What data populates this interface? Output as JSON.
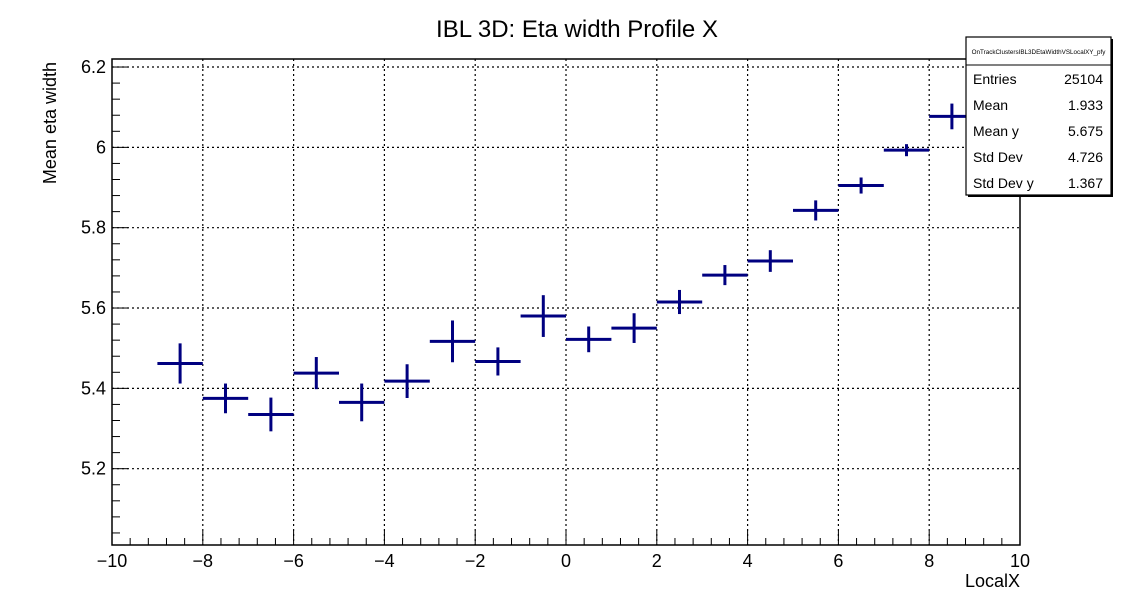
{
  "chart_data": {
    "type": "scatter",
    "title": "IBL 3D: Eta width Profile X",
    "xlabel": "LocalX",
    "ylabel": "Mean eta width",
    "xlim": [
      -10,
      10
    ],
    "ylim": [
      5.01,
      6.22
    ],
    "xticks": [
      -10,
      -8,
      -6,
      -4,
      -2,
      0,
      2,
      4,
      6,
      8,
      10
    ],
    "xtick_labels": [
      "−10",
      "−8",
      "−6",
      "−4",
      "−2",
      "0",
      "2",
      "4",
      "6",
      "8",
      "10"
    ],
    "yticks": [
      5.2,
      5.4,
      5.6,
      5.8,
      6.0,
      6.2
    ],
    "ytick_labels": [
      "5.2",
      "5.4",
      "5.6",
      "5.8",
      "6",
      "6.2"
    ],
    "grid": true,
    "color": "#000080",
    "series": [
      {
        "points": [
          {
            "x": -8.5,
            "y": 5.462,
            "xerr": 0.5,
            "yerr": 0.05
          },
          {
            "x": -7.5,
            "y": 5.375,
            "xerr": 0.5,
            "yerr": 0.037
          },
          {
            "x": -6.5,
            "y": 5.335,
            "xerr": 0.5,
            "yerr": 0.042
          },
          {
            "x": -5.5,
            "y": 5.438,
            "xerr": 0.5,
            "yerr": 0.04
          },
          {
            "x": -4.5,
            "y": 5.365,
            "xerr": 0.5,
            "yerr": 0.047
          },
          {
            "x": -3.5,
            "y": 5.418,
            "xerr": 0.5,
            "yerr": 0.042
          },
          {
            "x": -2.5,
            "y": 5.517,
            "xerr": 0.5,
            "yerr": 0.052
          },
          {
            "x": -1.5,
            "y": 5.467,
            "xerr": 0.5,
            "yerr": 0.035
          },
          {
            "x": -0.5,
            "y": 5.58,
            "xerr": 0.5,
            "yerr": 0.052
          },
          {
            "x": 0.5,
            "y": 5.522,
            "xerr": 0.5,
            "yerr": 0.032
          },
          {
            "x": 1.5,
            "y": 5.55,
            "xerr": 0.5,
            "yerr": 0.037
          },
          {
            "x": 2.5,
            "y": 5.615,
            "xerr": 0.5,
            "yerr": 0.03
          },
          {
            "x": 3.5,
            "y": 5.682,
            "xerr": 0.5,
            "yerr": 0.025
          },
          {
            "x": 4.5,
            "y": 5.717,
            "xerr": 0.5,
            "yerr": 0.027
          },
          {
            "x": 5.5,
            "y": 5.843,
            "xerr": 0.5,
            "yerr": 0.025
          },
          {
            "x": 6.5,
            "y": 5.905,
            "xerr": 0.5,
            "yerr": 0.02
          },
          {
            "x": 7.5,
            "y": 5.993,
            "xerr": 0.5,
            "yerr": 0.015
          },
          {
            "x": 8.5,
            "y": 6.077,
            "xerr": 0.5,
            "yerr": 0.032
          }
        ]
      }
    ],
    "stats_box": {
      "name": "OnTrackClustersIBL3DEtaWidthVSLocalXY_pfy",
      "rows": [
        {
          "label": "Entries",
          "value": "25104"
        },
        {
          "label": "Mean",
          "value": "1.933"
        },
        {
          "label": "Mean y",
          "value": "5.675"
        },
        {
          "label": "Std Dev",
          "value": "4.726"
        },
        {
          "label": "Std Dev y",
          "value": "1.367"
        }
      ],
      "placement": "top-right"
    }
  }
}
